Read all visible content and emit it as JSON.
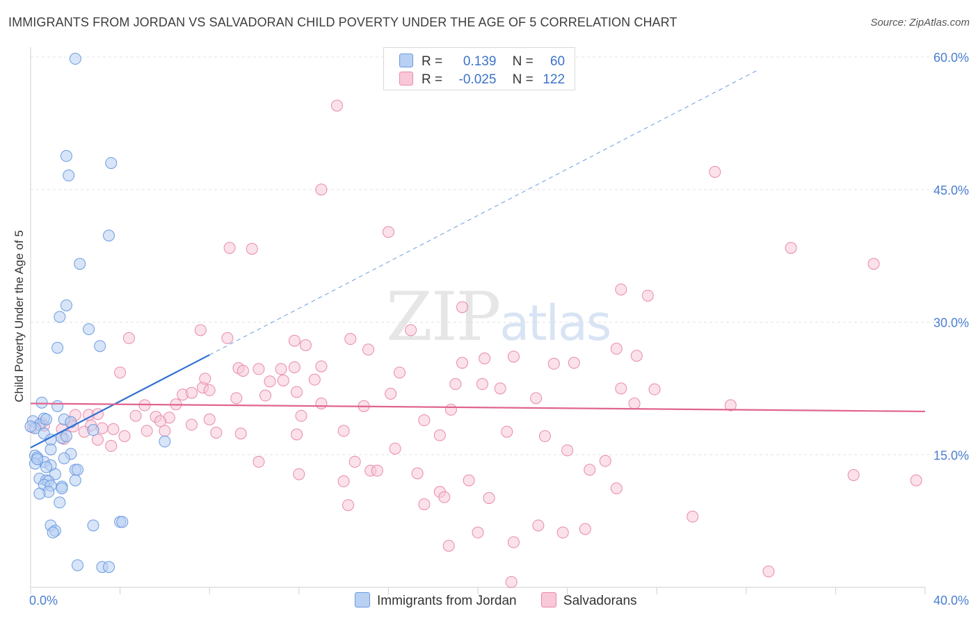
{
  "header": {
    "title": "IMMIGRANTS FROM JORDAN VS SALVADORAN CHILD POVERTY UNDER THE AGE OF 5 CORRELATION CHART",
    "source": "Source: ZipAtlas.com"
  },
  "watermark": {
    "zip": "ZIP",
    "atlas": "atlas"
  },
  "legend": {
    "r_label": "R =",
    "n_label": "N =",
    "series": [
      {
        "r": "0.139",
        "n": "60"
      },
      {
        "r": "-0.025",
        "n": "122"
      }
    ]
  },
  "bottom_legend": [
    "Immigrants from Jordan",
    "Salvadorans"
  ],
  "chart_data": {
    "type": "scatter",
    "title": "IMMIGRANTS FROM JORDAN VS SALVADORAN CHILD POVERTY UNDER THE AGE OF 5 CORRELATION CHART",
    "xlabel": "",
    "ylabel": "Child Poverty Under the Age of 5",
    "xlim": [
      0,
      40
    ],
    "ylim": [
      0,
      60
    ],
    "x_tick_labels": [
      "0.0%",
      "40.0%"
    ],
    "y_ticks": [
      {
        "value": 15,
        "label": "15.0%"
      },
      {
        "value": 30,
        "label": "30.0%"
      },
      {
        "value": 45,
        "label": "45.0%"
      },
      {
        "value": 60,
        "label": "60.0%"
      }
    ],
    "grid": true,
    "legend_position": "top-center",
    "colors": {
      "blue": "#4a7fd0",
      "blue_fill": "#b8d0f2",
      "pink": "#e0648f",
      "pink_fill": "#f8c8d8"
    },
    "series": [
      {
        "name": "Immigrants from Jordan",
        "color": "#4a7fd0",
        "trend": {
          "x0": 0,
          "y0": 15.8,
          "x1": 8,
          "y1": 26.3,
          "dashed_to_x": 32.5,
          "dashed_to_y": 58.5
        },
        "points": [
          [
            2.0,
            59.8
          ],
          [
            1.6,
            48.8
          ],
          [
            3.6,
            48.0
          ],
          [
            1.7,
            46.6
          ],
          [
            3.5,
            39.8
          ],
          [
            2.2,
            36.6
          ],
          [
            1.6,
            31.9
          ],
          [
            1.3,
            30.6
          ],
          [
            2.6,
            29.2
          ],
          [
            3.1,
            27.3
          ],
          [
            1.2,
            27.1
          ],
          [
            0.5,
            20.9
          ],
          [
            1.2,
            20.5
          ],
          [
            0.6,
            19.1
          ],
          [
            0.1,
            18.8
          ],
          [
            1.5,
            19.0
          ],
          [
            1.8,
            18.7
          ],
          [
            0.4,
            18.4
          ],
          [
            0.2,
            18.0
          ],
          [
            0.6,
            17.4
          ],
          [
            2.8,
            17.8
          ],
          [
            1.4,
            16.9
          ],
          [
            0.9,
            16.7
          ],
          [
            6.0,
            16.5
          ],
          [
            0.9,
            15.6
          ],
          [
            1.8,
            15.1
          ],
          [
            0.2,
            14.9
          ],
          [
            0.3,
            14.7
          ],
          [
            1.5,
            14.6
          ],
          [
            0.6,
            14.2
          ],
          [
            0.2,
            14.0
          ],
          [
            0.9,
            13.8
          ],
          [
            0.7,
            13.6
          ],
          [
            2.0,
            13.3
          ],
          [
            2.1,
            13.3
          ],
          [
            1.1,
            12.8
          ],
          [
            0.4,
            12.3
          ],
          [
            0.7,
            12.1
          ],
          [
            0.8,
            12.0
          ],
          [
            2.0,
            12.1
          ],
          [
            0.6,
            11.6
          ],
          [
            1.4,
            11.4
          ],
          [
            0.9,
            11.5
          ],
          [
            1.4,
            11.2
          ],
          [
            0.8,
            10.8
          ],
          [
            0.4,
            10.6
          ],
          [
            1.3,
            9.6
          ],
          [
            0.9,
            7.0
          ],
          [
            2.8,
            7.0
          ],
          [
            4.0,
            7.4
          ],
          [
            4.1,
            7.4
          ],
          [
            1.1,
            6.4
          ],
          [
            1.0,
            6.2
          ],
          [
            2.1,
            2.5
          ],
          [
            3.2,
            2.3
          ],
          [
            3.5,
            2.3
          ],
          [
            0.0,
            18.2
          ],
          [
            0.3,
            14.5
          ],
          [
            1.6,
            17.1
          ],
          [
            0.7,
            19.0
          ]
        ]
      },
      {
        "name": "Salvadorans",
        "color": "#e0648f",
        "trend": {
          "x0": 0,
          "y0": 20.8,
          "x1": 40,
          "y1": 19.9
        },
        "points": [
          [
            13.7,
            54.5
          ],
          [
            13.0,
            45.0
          ],
          [
            30.6,
            47.0
          ],
          [
            16.0,
            40.2
          ],
          [
            8.9,
            38.4
          ],
          [
            9.9,
            38.3
          ],
          [
            34.0,
            38.4
          ],
          [
            37.7,
            36.6
          ],
          [
            26.4,
            33.7
          ],
          [
            27.6,
            33.0
          ],
          [
            19.3,
            31.7
          ],
          [
            7.6,
            29.1
          ],
          [
            17.0,
            29.1
          ],
          [
            4.4,
            28.2
          ],
          [
            8.8,
            28.2
          ],
          [
            11.8,
            27.9
          ],
          [
            12.3,
            27.4
          ],
          [
            14.3,
            28.1
          ],
          [
            15.1,
            26.9
          ],
          [
            26.2,
            27.0
          ],
          [
            19.3,
            25.4
          ],
          [
            20.3,
            25.9
          ],
          [
            21.6,
            26.1
          ],
          [
            23.4,
            25.3
          ],
          [
            24.3,
            25.4
          ],
          [
            27.1,
            26.2
          ],
          [
            13.0,
            25.0
          ],
          [
            9.3,
            24.8
          ],
          [
            10.2,
            24.7
          ],
          [
            11.2,
            24.7
          ],
          [
            11.8,
            24.9
          ],
          [
            4.0,
            24.3
          ],
          [
            9.5,
            24.5
          ],
          [
            16.5,
            24.3
          ],
          [
            7.7,
            22.6
          ],
          [
            7.8,
            23.6
          ],
          [
            10.7,
            23.3
          ],
          [
            11.3,
            23.4
          ],
          [
            12.7,
            23.5
          ],
          [
            20.2,
            23.0
          ],
          [
            21.0,
            22.5
          ],
          [
            26.4,
            22.5
          ],
          [
            27.9,
            22.4
          ],
          [
            6.8,
            21.8
          ],
          [
            7.2,
            22.0
          ],
          [
            8.0,
            22.3
          ],
          [
            9.2,
            21.4
          ],
          [
            10.5,
            21.7
          ],
          [
            11.9,
            22.1
          ],
          [
            16.1,
            21.9
          ],
          [
            5.1,
            20.6
          ],
          [
            6.5,
            20.7
          ],
          [
            13.0,
            20.8
          ],
          [
            14.9,
            20.5
          ],
          [
            18.8,
            20.1
          ],
          [
            27.0,
            20.8
          ],
          [
            31.3,
            20.6
          ],
          [
            2.6,
            19.5
          ],
          [
            3.0,
            19.6
          ],
          [
            4.7,
            19.4
          ],
          [
            5.6,
            19.3
          ],
          [
            6.2,
            19.2
          ],
          [
            8.0,
            19.0
          ],
          [
            17.6,
            18.9
          ],
          [
            1.8,
            18.7
          ],
          [
            2.0,
            19.5
          ],
          [
            2.7,
            18.3
          ],
          [
            3.2,
            18.0
          ],
          [
            4.2,
            17.1
          ],
          [
            5.2,
            17.7
          ],
          [
            6.0,
            17.7
          ],
          [
            9.4,
            17.4
          ],
          [
            11.9,
            17.3
          ],
          [
            14.0,
            17.7
          ],
          [
            18.3,
            17.2
          ],
          [
            21.3,
            17.6
          ],
          [
            23.0,
            17.1
          ],
          [
            1.5,
            16.8
          ],
          [
            3.0,
            16.7
          ],
          [
            3.6,
            16.0
          ],
          [
            16.3,
            15.7
          ],
          [
            24.0,
            15.5
          ],
          [
            10.2,
            14.2
          ],
          [
            14.5,
            14.2
          ],
          [
            25.7,
            14.3
          ],
          [
            15.2,
            13.2
          ],
          [
            15.5,
            13.2
          ],
          [
            25.0,
            13.3
          ],
          [
            12.0,
            12.8
          ],
          [
            17.3,
            12.9
          ],
          [
            36.8,
            12.7
          ],
          [
            39.6,
            12.1
          ],
          [
            14.0,
            12.0
          ],
          [
            19.6,
            12.1
          ],
          [
            18.3,
            10.8
          ],
          [
            18.5,
            10.2
          ],
          [
            20.5,
            10.1
          ],
          [
            26.2,
            11.2
          ],
          [
            14.2,
            9.3
          ],
          [
            17.6,
            9.4
          ],
          [
            29.6,
            8.0
          ],
          [
            22.7,
            7.0
          ],
          [
            23.8,
            6.2
          ],
          [
            24.8,
            6.6
          ],
          [
            20.0,
            6.2
          ],
          [
            21.6,
            5.1
          ],
          [
            18.7,
            4.7
          ],
          [
            33.0,
            1.8
          ],
          [
            21.5,
            0.6
          ],
          [
            0.1,
            18.1
          ],
          [
            0.5,
            18.6
          ],
          [
            0.6,
            18.3
          ],
          [
            1.4,
            17.9
          ],
          [
            1.9,
            18.2
          ],
          [
            2.4,
            17.6
          ],
          [
            3.7,
            17.9
          ],
          [
            5.8,
            18.8
          ],
          [
            7.2,
            18.4
          ],
          [
            8.3,
            17.5
          ],
          [
            12.1,
            19.4
          ],
          [
            19.0,
            23.0
          ],
          [
            22.6,
            21.4
          ]
        ]
      }
    ]
  }
}
